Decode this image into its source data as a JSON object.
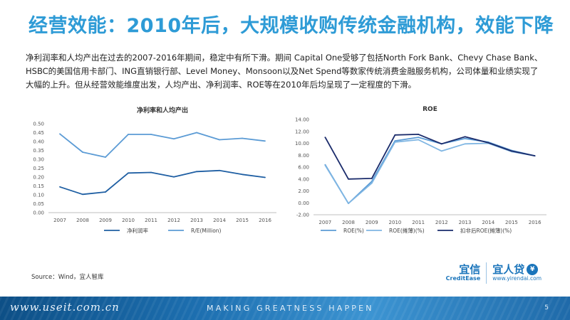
{
  "title": "经营效能：2010年后，大规模收购传统金融机构，效能下降",
  "description": "净利润率和人均产出在过去的2007-2016年期间，稳定中有所下滑。期间 Capital One受够了包括North Fork Bank、Chevy Chase Bank、HSBC的美国信用卡部门、ING直销银行部、Level Money、Monsoon以及Net Spend等数家传统消费金融服务机构，公司体量和业绩实现了大幅的上升。但从经营效能维度出发，人均产出、净利润率、ROE等在2010年后均呈现了一定程度的下滑。",
  "colors": {
    "title": "#2e9bd6",
    "series_dark": "#1f5fa3",
    "series_light": "#5b9bd5",
    "series_navy": "#1a2b6b",
    "footer": "#1d6fb0"
  },
  "chart_data": [
    {
      "type": "line",
      "title": "净利率和人均产出",
      "x": [
        "2007",
        "2008",
        "2009",
        "2010",
        "2011",
        "2012",
        "2013",
        "2014",
        "2015",
        "2016"
      ],
      "y_ticks": [
        "0.00",
        "0.05",
        "0.10",
        "0.15",
        "0.20",
        "0.25",
        "0.30",
        "0.35",
        "0.40",
        "0.45",
        "0.50"
      ],
      "ylim": [
        0,
        0.5
      ],
      "series": [
        {
          "name": "净利润率",
          "color": "#1f5fa3",
          "values": [
            0.145,
            0.103,
            0.116,
            0.223,
            0.226,
            0.201,
            0.231,
            0.237,
            0.215,
            0.198
          ]
        },
        {
          "name": "R/E(Million)",
          "color": "#5b9bd5",
          "values": [
            0.443,
            0.34,
            0.312,
            0.44,
            0.44,
            0.415,
            0.45,
            0.41,
            0.418,
            0.403
          ]
        }
      ]
    },
    {
      "type": "line",
      "title": "ROE",
      "x": [
        "2007",
        "2008",
        "2009",
        "2010",
        "2011",
        "2012",
        "2013",
        "2014",
        "2015",
        "2016"
      ],
      "y_ticks": [
        "-2.00",
        "0.00",
        "2.00",
        "4.00",
        "6.00",
        "8.00",
        "10.00",
        "12.00",
        "14.00"
      ],
      "ylim": [
        -2,
        14
      ],
      "series": [
        {
          "name": "ROE(%)",
          "color": "#5b9bd5",
          "values": [
            6.4,
            -0.1,
            3.6,
            10.4,
            11.0,
            9.9,
            10.8,
            10.2,
            8.8,
            7.9
          ]
        },
        {
          "name": "ROE(摊薄)(%)",
          "color": "#7fb6e3",
          "values": [
            6.3,
            -0.1,
            3.3,
            10.2,
            10.6,
            8.7,
            9.9,
            10.0,
            8.6,
            7.9
          ]
        },
        {
          "name": "扣非后ROE(摊薄)(%)",
          "color": "#1a2b6b",
          "values": [
            11.0,
            4.0,
            4.1,
            11.4,
            11.5,
            9.9,
            11.1,
            10.1,
            8.7,
            7.9
          ]
        }
      ]
    }
  ],
  "source": "Source：Wind，宜人智库",
  "logo": {
    "creditease_cn": "宜信",
    "creditease_en": "CreditEase",
    "yirendai_cn": "宜人贷",
    "yirendai_en": "www.yirendai.com"
  },
  "footer": {
    "url": "www.useit.com.cn",
    "slogan": "MAKING GREATNESS HAPPEN",
    "page": "5"
  }
}
